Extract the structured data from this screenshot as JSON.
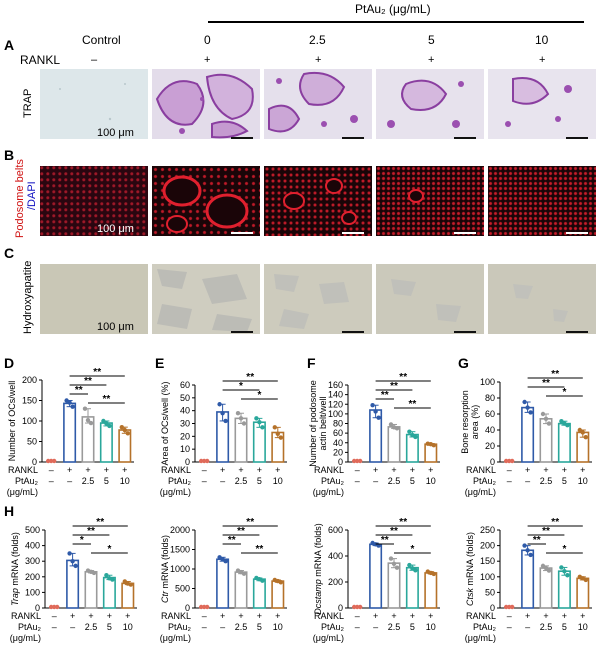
{
  "header": {
    "ptau_label": "PtAu₂ (μg/mL)",
    "control": "Control",
    "conc": [
      "0",
      "2.5",
      "5",
      "10"
    ],
    "rankl": "RANKL",
    "rankl_signs": [
      "–",
      "+",
      "+",
      "+",
      "+"
    ]
  },
  "rows": [
    {
      "letter": "A",
      "label": "TRAP",
      "scale": "100 μm"
    },
    {
      "letter": "B",
      "label_red": "Podosome belts",
      "label_blue": "/DAPI",
      "scale": "100 μm"
    },
    {
      "letter": "C",
      "label": "Hydroxyapatite",
      "scale": "100 μm"
    }
  ],
  "colors": {
    "control": "#e06a5a",
    "c0": "#2f5aa8",
    "c25": "#9a9a9a",
    "c5": "#2aa79b",
    "c10": "#b5722a",
    "trap_bg": "#dce6ea",
    "trap_purple": "#9b4fb0",
    "podo_bg": "#1a0508",
    "podo_red": "#d42030",
    "ha_bg": "#c8c5b4",
    "ha_blob": "#bdbdb7"
  },
  "xaxis": {
    "rankl_label": "RANKL",
    "ptau_label": "PtAu₂",
    "unit_label": "(μg/mL)",
    "rankl_row": [
      "–",
      "+",
      "+",
      "+",
      "+"
    ],
    "ptau_row": [
      "–",
      "–",
      "2.5",
      "5",
      "10"
    ]
  },
  "chart_data": [
    {
      "panel": "D",
      "type": "bar",
      "ylabel": "Number of OCs/well",
      "ylim": [
        0,
        200
      ],
      "yticks": [
        0,
        50,
        100,
        150,
        200
      ],
      "values": [
        0,
        143,
        110,
        95,
        78
      ],
      "points": [
        [
          0,
          0,
          0
        ],
        [
          150,
          145,
          135
        ],
        [
          130,
          102,
          95
        ],
        [
          100,
          94,
          88
        ],
        [
          85,
          78,
          70
        ]
      ],
      "sig": [
        {
          "from": 1,
          "to": 4,
          "label": "**"
        },
        {
          "from": 1,
          "to": 3,
          "label": "**"
        },
        {
          "from": 1,
          "to": 2,
          "label": "**"
        },
        {
          "from": 2,
          "to": 4,
          "label": "**"
        }
      ]
    },
    {
      "panel": "E",
      "type": "bar",
      "ylabel": "Area of OCs/well (%)",
      "ylim": [
        0,
        60
      ],
      "yticks": [
        0,
        10,
        20,
        30,
        40,
        50,
        60
      ],
      "values": [
        0,
        39,
        34,
        31,
        23
      ],
      "points": [
        [
          0,
          0,
          0
        ],
        [
          45,
          38,
          32
        ],
        [
          38,
          34,
          30
        ],
        [
          34,
          31,
          27
        ],
        [
          27,
          22,
          19
        ]
      ],
      "sig": [
        {
          "from": 1,
          "to": 4,
          "label": "**"
        },
        {
          "from": 1,
          "to": 3,
          "label": "*"
        },
        {
          "from": 2,
          "to": 4,
          "label": "*"
        }
      ]
    },
    {
      "panel": "F",
      "type": "bar",
      "ylabel": "Number of podosome actin belt/well",
      "ylim": [
        0,
        160
      ],
      "yticks": [
        0,
        20,
        40,
        60,
        80,
        100,
        120,
        140,
        160
      ],
      "values": [
        0,
        108,
        73,
        57,
        37
      ],
      "points": [
        [
          0,
          0,
          0
        ],
        [
          118,
          105,
          92
        ],
        [
          78,
          72,
          70
        ],
        [
          63,
          56,
          52
        ],
        [
          38,
          37,
          35
        ]
      ],
      "sig": [
        {
          "from": 1,
          "to": 4,
          "label": "**"
        },
        {
          "from": 1,
          "to": 3,
          "label": "**"
        },
        {
          "from": 1,
          "to": 2,
          "label": "**"
        },
        {
          "from": 2,
          "to": 4,
          "label": "**"
        }
      ]
    },
    {
      "panel": "G",
      "type": "bar",
      "ylabel": "Bone resorption area (%)",
      "ylim": [
        0,
        100
      ],
      "yticks": [
        0,
        20,
        40,
        60,
        80,
        100
      ],
      "values": [
        0,
        68,
        54,
        48,
        37
      ],
      "points": [
        [
          0,
          0,
          0
        ],
        [
          75,
          68,
          62
        ],
        [
          60,
          54,
          48
        ],
        [
          51,
          48,
          46
        ],
        [
          40,
          37,
          31
        ]
      ],
      "sig": [
        {
          "from": 1,
          "to": 4,
          "label": "**"
        },
        {
          "from": 1,
          "to": 3,
          "label": "**"
        },
        {
          "from": 2,
          "to": 4,
          "label": "*"
        }
      ]
    },
    {
      "panel": "H1",
      "type": "bar",
      "ylabel": "Trap mRNA (folds)",
      "ylim": [
        0,
        500
      ],
      "yticks": [
        0,
        100,
        200,
        300,
        400,
        500
      ],
      "values": [
        0,
        305,
        232,
        195,
        158
      ],
      "points": [
        [
          0,
          0,
          0
        ],
        [
          350,
          300,
          270
        ],
        [
          240,
          232,
          225
        ],
        [
          210,
          190,
          182
        ],
        [
          170,
          157,
          150
        ]
      ],
      "sig": [
        {
          "from": 1,
          "to": 4,
          "label": "**"
        },
        {
          "from": 1,
          "to": 3,
          "label": "**"
        },
        {
          "from": 1,
          "to": 2,
          "label": "*"
        },
        {
          "from": 2,
          "to": 4,
          "label": "*"
        }
      ]
    },
    {
      "panel": "H2",
      "type": "bar",
      "ylabel": "Ctr mRNA (folds)",
      "ylim": [
        0,
        2000
      ],
      "yticks": [
        0,
        500,
        1000,
        1500,
        2000
      ],
      "values": [
        0,
        1250,
        920,
        740,
        690
      ],
      "points": [
        [
          0,
          0,
          0
        ],
        [
          1300,
          1250,
          1200
        ],
        [
          960,
          920,
          880
        ],
        [
          770,
          740,
          700
        ],
        [
          720,
          690,
          660
        ]
      ],
      "sig": [
        {
          "from": 1,
          "to": 4,
          "label": "**"
        },
        {
          "from": 1,
          "to": 3,
          "label": "**"
        },
        {
          "from": 1,
          "to": 2,
          "label": "**"
        },
        {
          "from": 2,
          "to": 4,
          "label": "**"
        }
      ]
    },
    {
      "panel": "H3",
      "type": "bar",
      "ylabel": "Dcstamp mRNA (folds)",
      "ylim": [
        0,
        600
      ],
      "yticks": [
        0,
        200,
        400,
        600
      ],
      "values": [
        0,
        490,
        345,
        310,
        270
      ],
      "points": [
        [
          0,
          0,
          0
        ],
        [
          500,
          490,
          480
        ],
        [
          380,
          340,
          310
        ],
        [
          330,
          305,
          290
        ],
        [
          280,
          270,
          262
        ]
      ],
      "sig": [
        {
          "from": 1,
          "to": 4,
          "label": "**"
        },
        {
          "from": 1,
          "to": 3,
          "label": "**"
        },
        {
          "from": 1,
          "to": 2,
          "label": "**"
        },
        {
          "from": 2,
          "to": 4,
          "label": "*"
        }
      ]
    },
    {
      "panel": "H4",
      "type": "bar",
      "ylabel": "Ctsk mRNA (folds)",
      "ylim": [
        0,
        250
      ],
      "yticks": [
        0,
        50,
        100,
        150,
        200,
        250
      ],
      "values": [
        0,
        185,
        128,
        118,
        95
      ],
      "points": [
        [
          0,
          0,
          0
        ],
        [
          200,
          185,
          170
        ],
        [
          135,
          128,
          120
        ],
        [
          130,
          118,
          105
        ],
        [
          100,
          95,
          90
        ]
      ],
      "sig": [
        {
          "from": 1,
          "to": 4,
          "label": "**"
        },
        {
          "from": 1,
          "to": 3,
          "label": "**"
        },
        {
          "from": 1,
          "to": 2,
          "label": "**"
        },
        {
          "from": 2,
          "to": 4,
          "label": "*"
        }
      ]
    }
  ],
  "panel_letters": [
    "D",
    "E",
    "F",
    "G",
    "H"
  ]
}
